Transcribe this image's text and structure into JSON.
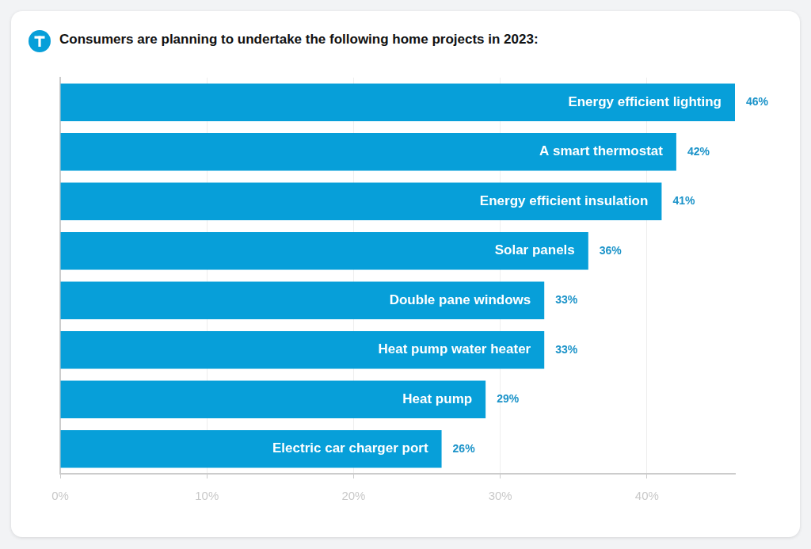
{
  "chart_data": {
    "type": "bar",
    "orientation": "horizontal",
    "title": "Consumers are planning to undertake the following home projects in 2023:",
    "categories": [
      "Energy efficient lighting",
      "A smart thermostat",
      "Energy efficient insulation",
      "Solar panels",
      "Double pane windows",
      "Heat pump water heater",
      "Heat pump",
      "Electric car charger port"
    ],
    "values": [
      46,
      42,
      41,
      36,
      33,
      33,
      29,
      26
    ],
    "value_labels": [
      "46%",
      "42%",
      "41%",
      "36%",
      "33%",
      "33%",
      "29%",
      "26%"
    ],
    "color": "#079fd9",
    "xlim": [
      0,
      46
    ],
    "xticks": [
      {
        "value": 0,
        "label": "0%"
      },
      {
        "value": 10,
        "label": "10%"
      },
      {
        "value": 20,
        "label": "20%"
      },
      {
        "value": 30,
        "label": "30%"
      },
      {
        "value": 40,
        "label": "40%"
      }
    ],
    "grid": true,
    "data_labels": true,
    "tick_labels": "x"
  }
}
